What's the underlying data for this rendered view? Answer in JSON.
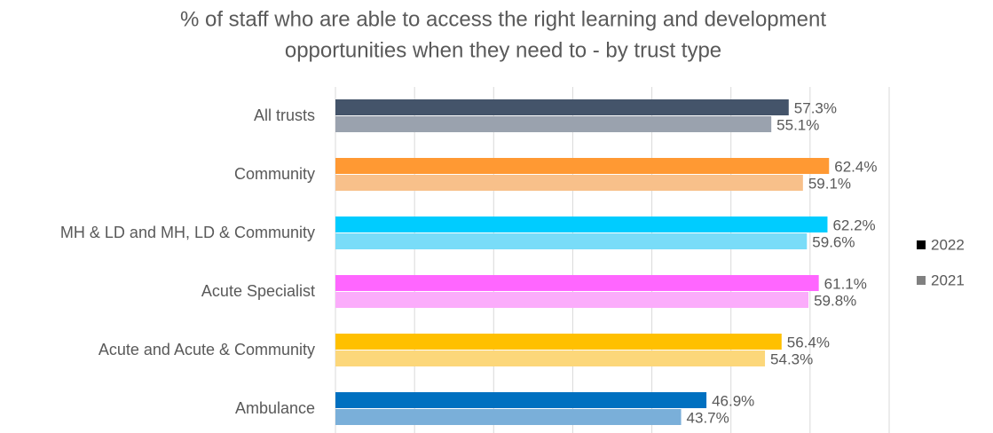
{
  "chart_data": {
    "type": "bar",
    "orientation": "horizontal",
    "title": [
      "% of staff who are able to access the right learning and development",
      "opportunities when they need to - by trust type"
    ],
    "categories": [
      "All trusts",
      "Community",
      "MH & LD and MH, LD & Community",
      "Acute Specialist",
      "Acute and Acute & Community",
      "Ambulance"
    ],
    "series": [
      {
        "name": "2022",
        "legend_color": "#000000",
        "color": [
          "#44546a",
          "#ff9933",
          "#00ccff",
          "#ff66ff",
          "#ffc000",
          "#0070c0"
        ],
        "values": [
          57.3,
          62.4,
          62.2,
          61.1,
          56.4,
          46.9
        ],
        "value_labels": [
          "57.3%",
          "62.4%",
          "62.2%",
          "61.1%",
          "56.4%",
          "46.9%"
        ]
      },
      {
        "name": "2021",
        "legend_color": "#808080",
        "color": [
          "#9aa2ae",
          "#f8c08a",
          "#79dcf8",
          "#fbacfb",
          "#fcd77a",
          "#7aafd9"
        ],
        "values": [
          55.1,
          59.1,
          59.6,
          59.8,
          54.3,
          43.7
        ],
        "value_labels": [
          "55.1%",
          "59.1%",
          "59.6%",
          "59.8%",
          "54.3%",
          "43.7%"
        ]
      }
    ],
    "xlim": [
      0,
      70
    ],
    "xticks": [
      0,
      10,
      20,
      30,
      40,
      50,
      60,
      70
    ],
    "xtick_labels": false,
    "grid": true,
    "legend": "right"
  }
}
